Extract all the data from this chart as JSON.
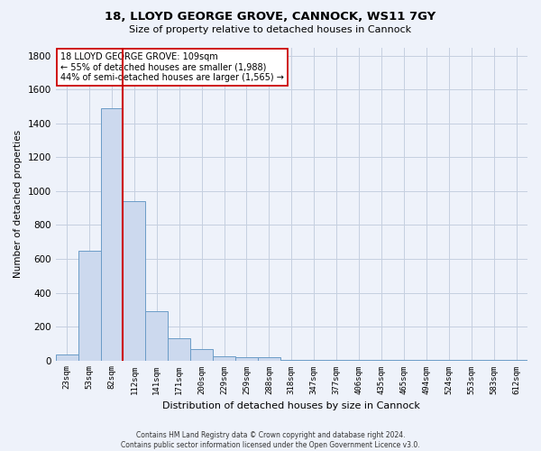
{
  "title": "18, LLOYD GEORGE GROVE, CANNOCK, WS11 7GY",
  "subtitle": "Size of property relative to detached houses in Cannock",
  "xlabel": "Distribution of detached houses by size in Cannock",
  "ylabel": "Number of detached properties",
  "bar_labels": [
    "23sqm",
    "53sqm",
    "82sqm",
    "112sqm",
    "141sqm",
    "171sqm",
    "200sqm",
    "229sqm",
    "259sqm",
    "288sqm",
    "318sqm",
    "347sqm",
    "377sqm",
    "406sqm",
    "435sqm",
    "465sqm",
    "494sqm",
    "524sqm",
    "553sqm",
    "583sqm",
    "612sqm"
  ],
  "bar_values": [
    35,
    650,
    1490,
    940,
    290,
    130,
    65,
    25,
    18,
    18,
    5,
    5,
    5,
    5,
    5,
    5,
    5,
    5,
    5,
    5,
    5
  ],
  "bar_color": "#ccd9ee",
  "bar_edge_color": "#6b9cc7",
  "grid_color": "#c5cfe0",
  "background_color": "#eef2fa",
  "vline_color": "#cc0000",
  "vline_index": 2.5,
  "annotation_line1": "18 LLOYD GEORGE GROVE: 109sqm",
  "annotation_line2": "← 55% of detached houses are smaller (1,988)",
  "annotation_line3": "44% of semi-detached houses are larger (1,565) →",
  "annotation_box_color": "#ffffff",
  "annotation_box_edge": "#cc0000",
  "ylim": [
    0,
    1850
  ],
  "yticks": [
    0,
    200,
    400,
    600,
    800,
    1000,
    1200,
    1400,
    1600,
    1800
  ],
  "footnote_line1": "Contains HM Land Registry data © Crown copyright and database right 2024.",
  "footnote_line2": "Contains public sector information licensed under the Open Government Licence v3.0."
}
